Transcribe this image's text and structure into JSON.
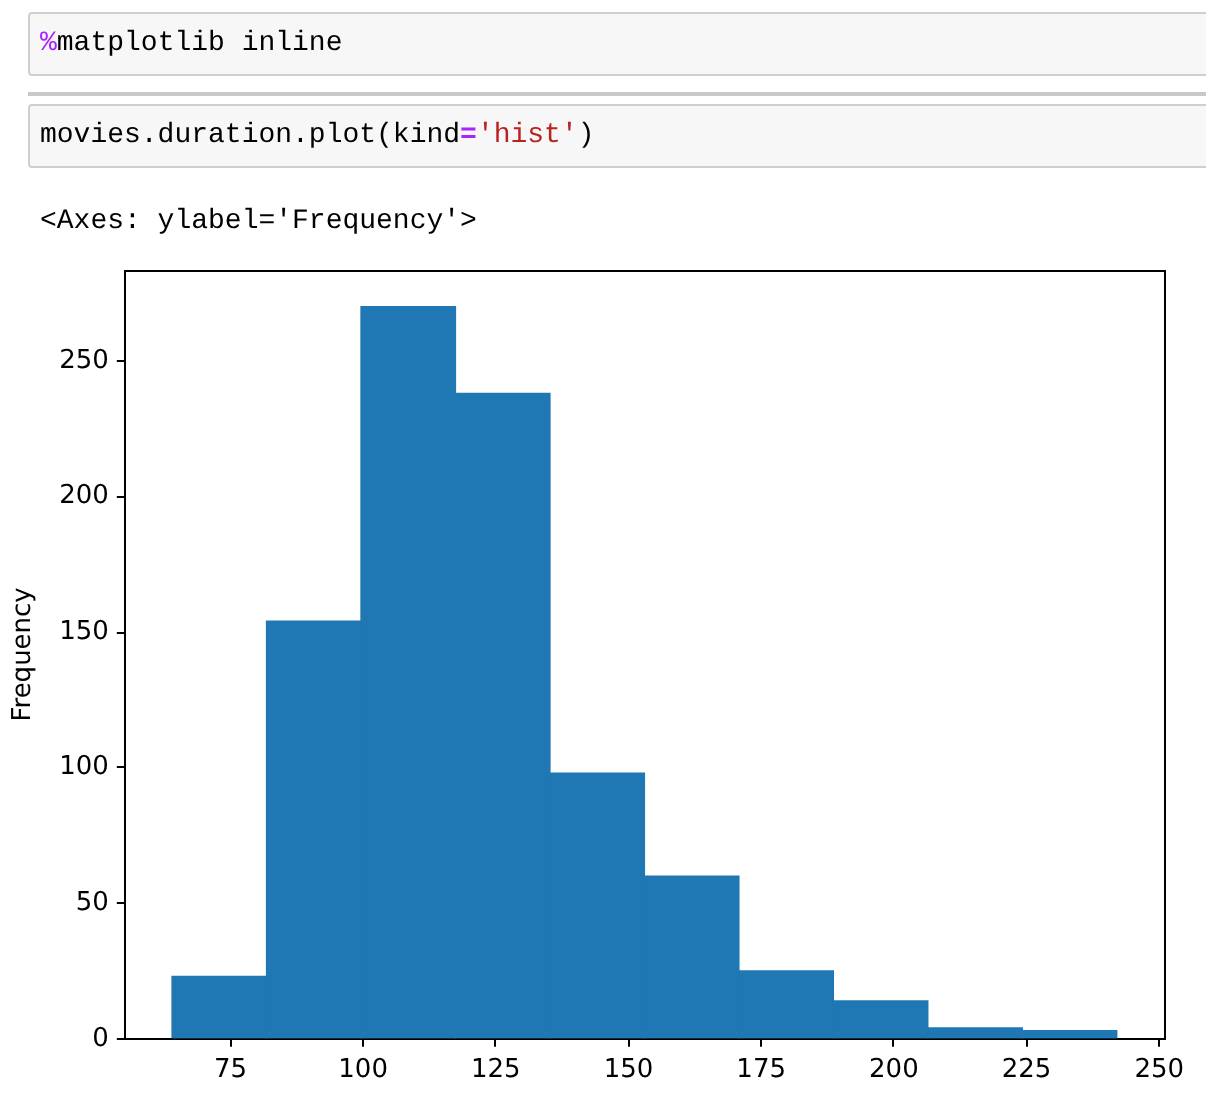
{
  "chart_data": {
    "type": "histogram",
    "bins": [
      64,
      81.8,
      99.6,
      117.4,
      135.2,
      153,
      170.8,
      188.6,
      206.4,
      224.2,
      242
    ],
    "values": [
      23,
      154,
      270,
      238,
      98,
      60,
      25,
      14,
      4,
      3
    ],
    "color": "#1f77b4",
    "xlim": [
      55.1,
      250.9
    ],
    "xticks": [
      75,
      100,
      125,
      150,
      175,
      200,
      225,
      250
    ],
    "ylim": [
      0,
      283.5
    ],
    "yticks": [
      0,
      50,
      100,
      150,
      200,
      250
    ],
    "ylabel": "Frequency",
    "annotations": [
      "%matplotlib inline",
      "movies.duration.plot(kind='hist')",
      "<Axes: ylabel='Frequency'>"
    ]
  }
}
